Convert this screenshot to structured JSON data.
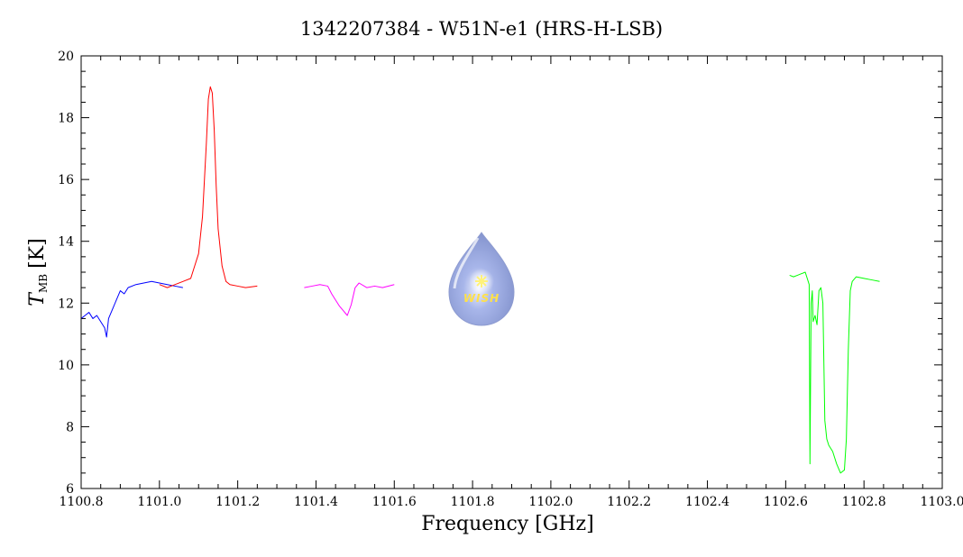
{
  "chart_data": {
    "type": "line",
    "title": "1342207384 - W51N-e1 (HRS-H-LSB)",
    "xlabel": "Frequency [GHz]",
    "ylabel_main": "T",
    "ylabel_sub": "MB",
    "ylabel_unit": "[K]",
    "xlim": [
      1100.8,
      1103.0
    ],
    "ylim": [
      6,
      20
    ],
    "x_ticks": [
      "1100.8",
      "1101.0",
      "1101.2",
      "1101.4",
      "1101.6",
      "1101.8",
      "1102.0",
      "1102.2",
      "1102.4",
      "1102.6",
      "1102.8",
      "1103.0"
    ],
    "y_ticks": [
      "6",
      "8",
      "10",
      "12",
      "14",
      "16",
      "18",
      "20"
    ],
    "logo_text": "WISH",
    "series": [
      {
        "color": "#0000ff",
        "x": [
          1100.8,
          1100.81,
          1100.82,
          1100.83,
          1100.84,
          1100.85,
          1100.86,
          1100.865,
          1100.87,
          1100.88,
          1100.89,
          1100.9,
          1100.91,
          1100.92,
          1100.94,
          1100.96,
          1100.98,
          1101.0,
          1101.02,
          1101.04,
          1101.06
        ],
        "y": [
          11.5,
          11.6,
          11.7,
          11.5,
          11.6,
          11.4,
          11.2,
          10.9,
          11.5,
          11.8,
          12.1,
          12.4,
          12.3,
          12.5,
          12.6,
          12.65,
          12.7,
          12.65,
          12.6,
          12.55,
          12.5
        ]
      },
      {
        "color": "#ff0000",
        "x": [
          1101.0,
          1101.02,
          1101.04,
          1101.06,
          1101.08,
          1101.09,
          1101.1,
          1101.11,
          1101.12,
          1101.125,
          1101.13,
          1101.135,
          1101.14,
          1101.145,
          1101.15,
          1101.16,
          1101.17,
          1101.18,
          1101.2,
          1101.22,
          1101.25
        ],
        "y": [
          12.6,
          12.5,
          12.6,
          12.7,
          12.8,
          13.2,
          13.6,
          14.8,
          17.2,
          18.6,
          19.0,
          18.8,
          17.6,
          15.8,
          14.4,
          13.2,
          12.7,
          12.6,
          12.55,
          12.5,
          12.55
        ]
      },
      {
        "color": "#ff00ff",
        "x": [
          1101.37,
          1101.39,
          1101.41,
          1101.43,
          1101.44,
          1101.45,
          1101.46,
          1101.47,
          1101.48,
          1101.49,
          1101.5,
          1101.51,
          1101.53,
          1101.55,
          1101.57,
          1101.6
        ],
        "y": [
          12.5,
          12.55,
          12.6,
          12.55,
          12.3,
          12.1,
          11.9,
          11.75,
          11.6,
          11.95,
          12.5,
          12.65,
          12.5,
          12.55,
          12.5,
          12.6
        ]
      },
      {
        "color": "#00ff00",
        "x": [
          1102.61,
          1102.62,
          1102.63,
          1102.64,
          1102.65,
          1102.66,
          1102.662,
          1102.665,
          1102.668,
          1102.67,
          1102.675,
          1102.68,
          1102.685,
          1102.69,
          1102.695,
          1102.7,
          1102.705,
          1102.71,
          1102.72,
          1102.73,
          1102.74,
          1102.75,
          1102.755,
          1102.76,
          1102.765,
          1102.77,
          1102.78,
          1102.8,
          1102.82,
          1102.84
        ],
        "y": [
          12.9,
          12.85,
          12.9,
          12.95,
          13.0,
          12.6,
          6.8,
          12.0,
          12.4,
          11.4,
          11.6,
          11.3,
          12.4,
          12.5,
          12.0,
          8.2,
          7.6,
          7.4,
          7.2,
          6.8,
          6.5,
          6.6,
          7.6,
          10.5,
          12.4,
          12.7,
          12.85,
          12.8,
          12.75,
          12.7
        ]
      }
    ]
  }
}
